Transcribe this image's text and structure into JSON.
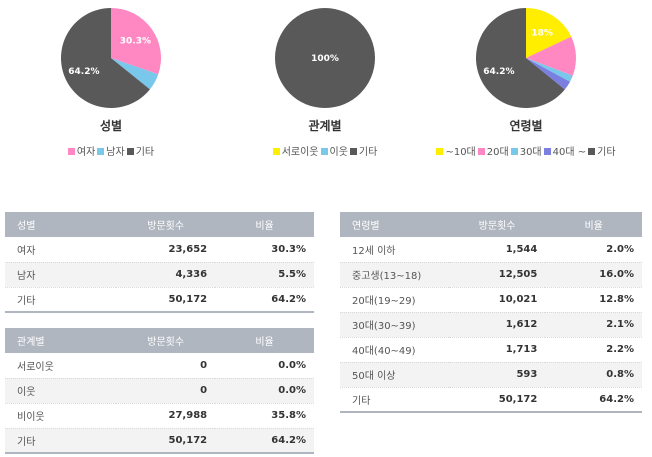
{
  "chart_data": [
    {
      "type": "pie",
      "title": "성별",
      "slices": [
        {
          "label": "여자",
          "value": 30.3,
          "color": "#ff88c2",
          "display": "30.3%"
        },
        {
          "label": "남자",
          "value": 5.5,
          "color": "#79c8ec",
          "display": ""
        },
        {
          "label": "기타",
          "value": 64.2,
          "color": "#595959",
          "display": "64.2%"
        }
      ],
      "legend": [
        "여자",
        "남자",
        "기타"
      ],
      "legend_placement": "bottom"
    },
    {
      "type": "pie",
      "title": "관계별",
      "slices": [
        {
          "label": "서로이웃",
          "value": 0,
          "color": "#ffee00",
          "display": ""
        },
        {
          "label": "이웃",
          "value": 0,
          "color": "#79c8ec",
          "display": ""
        },
        {
          "label": "기타",
          "value": 100,
          "color": "#595959",
          "display": "100%"
        }
      ],
      "legend": [
        "서로이웃",
        "이웃",
        "기타"
      ],
      "legend_placement": "bottom"
    },
    {
      "type": "pie",
      "title": "연령별",
      "slices": [
        {
          "label": "~10대",
          "value": 18,
          "color": "#ffee00",
          "display": "18%"
        },
        {
          "label": "20대",
          "value": 12.8,
          "color": "#ff88c2",
          "display": ""
        },
        {
          "label": "30대",
          "value": 2.1,
          "color": "#79c8ec",
          "display": ""
        },
        {
          "label": "40대 ~",
          "value": 3.0,
          "color": "#7b7fe0",
          "display": ""
        },
        {
          "label": "기타",
          "value": 64.2,
          "color": "#595959",
          "display": "64.2%"
        }
      ],
      "legend": [
        "~10대",
        "20대",
        "30대",
        "40대 ~",
        "기타"
      ],
      "legend_placement": "bottom"
    }
  ],
  "tables": {
    "gender": {
      "headers": [
        "성별",
        "방문횟수",
        "비율"
      ],
      "rows": [
        [
          "여자",
          "23,652",
          "30.3%"
        ],
        [
          "남자",
          "4,336",
          "5.5%"
        ],
        [
          "기타",
          "50,172",
          "64.2%"
        ]
      ]
    },
    "relation": {
      "headers": [
        "관계별",
        "방문횟수",
        "비율"
      ],
      "rows": [
        [
          "서로이웃",
          "0",
          "0.0%"
        ],
        [
          "이웃",
          "0",
          "0.0%"
        ],
        [
          "비이웃",
          "27,988",
          "35.8%"
        ],
        [
          "기타",
          "50,172",
          "64.2%"
        ]
      ]
    },
    "age": {
      "headers": [
        "연령별",
        "방문횟수",
        "비율"
      ],
      "rows": [
        [
          "12세 이하",
          "1,544",
          "2.0%"
        ],
        [
          "중고생(13~18)",
          "12,505",
          "16.0%"
        ],
        [
          "20대(19~29)",
          "10,021",
          "12.8%"
        ],
        [
          "30대(30~39)",
          "1,612",
          "2.1%"
        ],
        [
          "40대(40~49)",
          "1,713",
          "2.2%"
        ],
        [
          "50대 이상",
          "593",
          "0.8%"
        ],
        [
          "기타",
          "50,172",
          "64.2%"
        ]
      ]
    }
  }
}
